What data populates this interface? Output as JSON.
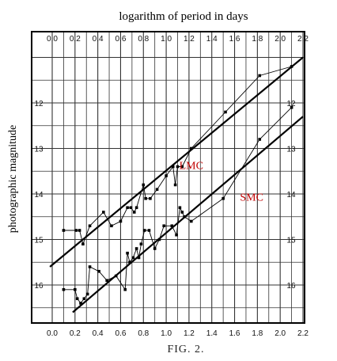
{
  "chart_data": {
    "type": "scatter",
    "title": "logarithm of period in days",
    "ylabel": "photographic magnitude",
    "caption": "FIG. 2.",
    "xlim": [
      0.0,
      2.2
    ],
    "ylim": [
      16.6,
      11.0
    ],
    "x_ticks": [
      0.0,
      0.2,
      0.4,
      0.6,
      0.8,
      1.0,
      1.2,
      1.4,
      1.6,
      1.8,
      2.0,
      2.2
    ],
    "x_tick_labels": [
      "0.0",
      "0.2",
      "0.4",
      "0.6",
      "0.8",
      "1.0",
      "1.2",
      "1.4",
      "1.6",
      "1.8",
      "2.0",
      "2.2"
    ],
    "y_ticks": [
      12,
      13,
      14,
      15,
      16
    ],
    "y_tick_labels": [
      "12",
      "13",
      "14",
      "15",
      "16"
    ],
    "y_inverted": true,
    "grid": true,
    "series": [
      {
        "name": "LMC",
        "color": "#000000",
        "label_color": "#c00000",
        "points": [
          [
            0.1,
            14.8
          ],
          [
            0.21,
            14.8
          ],
          [
            0.24,
            14.8
          ],
          [
            0.27,
            15.1
          ],
          [
            0.33,
            14.7
          ],
          [
            0.45,
            14.4
          ],
          [
            0.52,
            14.7
          ],
          [
            0.6,
            14.6
          ],
          [
            0.66,
            14.3
          ],
          [
            0.69,
            14.3
          ],
          [
            0.72,
            14.4
          ],
          [
            0.74,
            14.3
          ],
          [
            0.8,
            13.8
          ],
          [
            0.82,
            14.1
          ],
          [
            0.86,
            14.1
          ],
          [
            0.92,
            13.9
          ],
          [
            1.0,
            13.6
          ],
          [
            1.06,
            13.4
          ],
          [
            1.08,
            13.8
          ],
          [
            1.1,
            13.4
          ],
          [
            1.14,
            13.4
          ],
          [
            1.22,
            13.0
          ],
          [
            1.52,
            12.2
          ],
          [
            1.82,
            11.4
          ],
          [
            2.1,
            11.2
          ]
        ],
        "fit": [
          [
            -0.02,
            15.6
          ],
          [
            2.2,
            11.0
          ]
        ]
      },
      {
        "name": "SMC",
        "color": "#000000",
        "label_color": "#c00000",
        "points": [
          [
            0.1,
            16.1
          ],
          [
            0.2,
            16.1
          ],
          [
            0.22,
            16.3
          ],
          [
            0.25,
            16.4
          ],
          [
            0.28,
            16.3
          ],
          [
            0.31,
            16.2
          ],
          [
            0.33,
            15.6
          ],
          [
            0.41,
            15.7
          ],
          [
            0.48,
            15.9
          ],
          [
            0.56,
            15.8
          ],
          [
            0.64,
            16.1
          ],
          [
            0.66,
            15.3
          ],
          [
            0.68,
            15.5
          ],
          [
            0.71,
            15.4
          ],
          [
            0.74,
            15.2
          ],
          [
            0.76,
            15.4
          ],
          [
            0.78,
            15.1
          ],
          [
            0.81,
            14.8
          ],
          [
            0.85,
            14.8
          ],
          [
            0.9,
            15.2
          ],
          [
            0.94,
            15.0
          ],
          [
            0.98,
            14.7
          ],
          [
            1.05,
            14.7
          ],
          [
            1.09,
            14.9
          ],
          [
            1.12,
            14.3
          ],
          [
            1.14,
            14.4
          ],
          [
            1.16,
            14.5
          ],
          [
            1.22,
            14.6
          ],
          [
            1.5,
            14.1
          ],
          [
            1.82,
            12.8
          ],
          [
            2.1,
            12.1
          ]
        ],
        "fit": [
          [
            0.18,
            16.6
          ],
          [
            2.2,
            12.3
          ]
        ]
      }
    ]
  }
}
